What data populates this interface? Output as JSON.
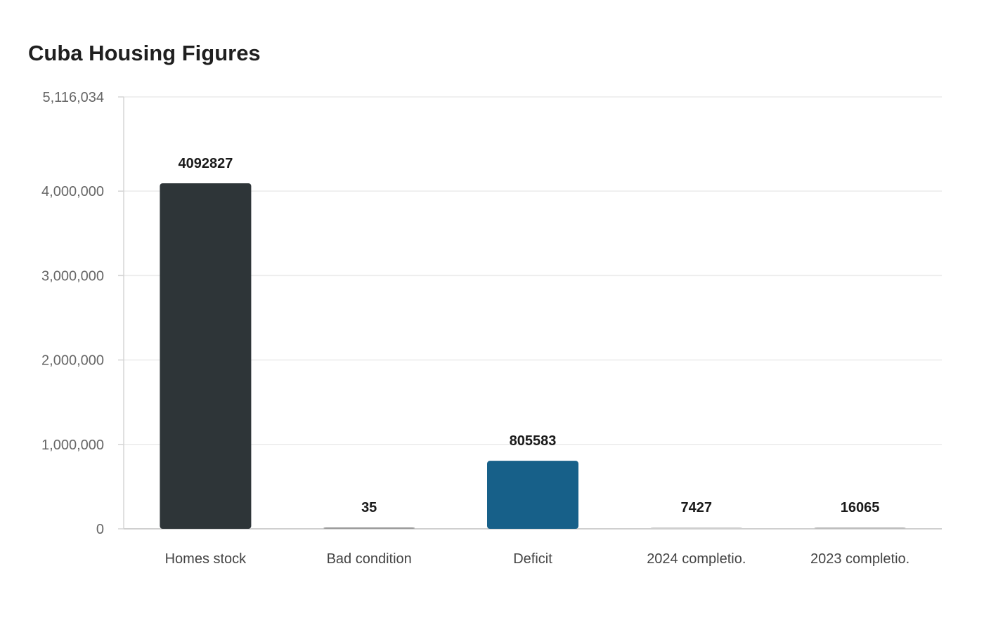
{
  "chart_data": {
    "type": "bar",
    "title": "Cuba Housing Figures",
    "xlabel": "",
    "ylabel": "",
    "categories": [
      "Homes stock",
      "Bad condition",
      "Deficit",
      "2024 completio.",
      "2023 completio."
    ],
    "values": [
      4092827,
      35,
      805583,
      7427,
      16065
    ],
    "data_labels": [
      "4092827",
      "35",
      "805583",
      "7427",
      "16065"
    ],
    "colors": [
      "#2e3538",
      "#9a9a9a",
      "#176089",
      "#cfcfcf",
      "#bdbdbd"
    ],
    "ylim": [
      0,
      5116034
    ],
    "yticks": [
      0,
      1000000,
      2000000,
      3000000,
      4000000,
      5116034
    ],
    "ytick_labels": [
      "0",
      "1,000,000",
      "2,000,000",
      "3,000,000",
      "4,000,000",
      "5,116,034"
    ],
    "grid": true,
    "legend": false
  }
}
